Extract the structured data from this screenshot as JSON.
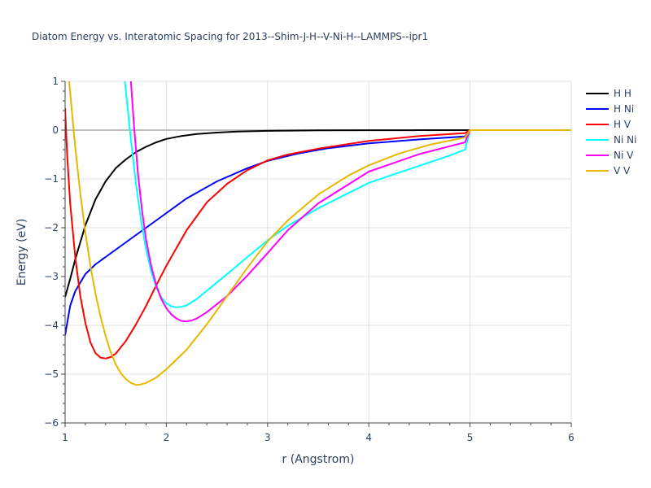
{
  "chart_data": {
    "type": "line",
    "title": "Diatom Energy vs. Interatomic Spacing for 2013--Shim-J-H--V-Ni-H--LAMMPS--ipr1",
    "xlabel": "r (Angstrom)",
    "ylabel": "Energy (eV)",
    "xlim": [
      1,
      6
    ],
    "ylim": [
      -6,
      1
    ],
    "x_ticks": [
      "1",
      "2",
      "3",
      "4",
      "5",
      "6"
    ],
    "y_ticks": [
      "1",
      "0",
      "−1",
      "−2",
      "−3",
      "−4",
      "−5",
      "−6"
    ],
    "grid": true,
    "legend_position": "top-right",
    "series": [
      {
        "name": "H H",
        "color": "#000000",
        "x": [
          1.0,
          1.05,
          1.1,
          1.2,
          1.3,
          1.4,
          1.5,
          1.6,
          1.7,
          1.8,
          1.9,
          2.0,
          2.15,
          2.3,
          2.5,
          2.7,
          3.0,
          3.5,
          4.0,
          4.5,
          5.0,
          6.0
        ],
        "y": [
          -3.42,
          -3.05,
          -2.65,
          -1.95,
          -1.42,
          -1.05,
          -0.78,
          -0.6,
          -0.45,
          -0.34,
          -0.25,
          -0.18,
          -0.12,
          -0.08,
          -0.05,
          -0.03,
          -0.015,
          -0.005,
          -0.002,
          -0.001,
          0.0,
          0.0
        ]
      },
      {
        "name": "H Ni",
        "color": "#0000ff",
        "x": [
          1.0,
          1.05,
          1.1,
          1.2,
          1.3,
          1.4,
          1.5,
          1.6,
          1.7,
          1.8,
          1.9,
          2.0,
          2.2,
          2.5,
          2.8,
          3.0,
          3.3,
          3.6,
          4.0,
          4.5,
          4.95,
          5.0,
          6.0
        ],
        "y": [
          -4.2,
          -3.6,
          -3.3,
          -2.95,
          -2.75,
          -2.6,
          -2.45,
          -2.3,
          -2.15,
          -2.0,
          -1.85,
          -1.7,
          -1.4,
          -1.05,
          -0.78,
          -0.63,
          -0.48,
          -0.37,
          -0.27,
          -0.19,
          -0.13,
          0.0,
          0.0
        ]
      },
      {
        "name": "H V",
        "color": "#ff0000",
        "x": [
          1.0,
          1.02,
          1.05,
          1.1,
          1.15,
          1.2,
          1.25,
          1.3,
          1.35,
          1.4,
          1.45,
          1.5,
          1.6,
          1.7,
          1.8,
          1.9,
          2.0,
          2.2,
          2.4,
          2.6,
          2.8,
          3.0,
          3.2,
          3.5,
          4.0,
          4.5,
          4.95,
          5.0,
          6.0
        ],
        "y": [
          0.45,
          -0.5,
          -1.5,
          -2.6,
          -3.4,
          -3.95,
          -4.35,
          -4.57,
          -4.66,
          -4.68,
          -4.65,
          -4.58,
          -4.32,
          -3.98,
          -3.6,
          -3.18,
          -2.78,
          -2.05,
          -1.48,
          -1.1,
          -0.82,
          -0.62,
          -0.5,
          -0.38,
          -0.22,
          -0.12,
          -0.06,
          0.0,
          0.0
        ]
      },
      {
        "name": "Ni Ni",
        "color": "#00ffff",
        "x": [
          1.59,
          1.62,
          1.65,
          1.7,
          1.75,
          1.8,
          1.85,
          1.9,
          1.95,
          2.0,
          2.05,
          2.1,
          2.15,
          2.2,
          2.3,
          2.4,
          2.6,
          2.8,
          3.0,
          3.2,
          3.5,
          4.0,
          4.5,
          4.8,
          4.95,
          5.0,
          6.0
        ],
        "y": [
          1.0,
          0.4,
          -0.2,
          -1.1,
          -1.85,
          -2.45,
          -2.9,
          -3.22,
          -3.43,
          -3.55,
          -3.61,
          -3.63,
          -3.62,
          -3.59,
          -3.46,
          -3.29,
          -2.95,
          -2.6,
          -2.26,
          -1.96,
          -1.6,
          -1.08,
          -0.73,
          -0.52,
          -0.4,
          0.0,
          0.0
        ]
      },
      {
        "name": "Ni V",
        "color": "#ff00ff",
        "x": [
          1.65,
          1.68,
          1.72,
          1.76,
          1.8,
          1.85,
          1.9,
          1.95,
          2.0,
          2.05,
          2.1,
          2.15,
          2.2,
          2.25,
          2.3,
          2.4,
          2.6,
          2.8,
          3.0,
          3.2,
          3.5,
          4.0,
          4.5,
          4.8,
          4.95,
          5.0,
          6.0
        ],
        "y": [
          1.0,
          0.1,
          -0.9,
          -1.65,
          -2.25,
          -2.78,
          -3.18,
          -3.46,
          -3.65,
          -3.78,
          -3.86,
          -3.91,
          -3.92,
          -3.9,
          -3.86,
          -3.73,
          -3.4,
          -2.98,
          -2.52,
          -2.05,
          -1.5,
          -0.85,
          -0.49,
          -0.33,
          -0.25,
          0.0,
          0.0
        ]
      },
      {
        "name": "V V",
        "color": "#e6b800",
        "x": [
          1.04,
          1.06,
          1.1,
          1.15,
          1.2,
          1.25,
          1.3,
          1.35,
          1.4,
          1.45,
          1.5,
          1.55,
          1.6,
          1.65,
          1.7,
          1.75,
          1.8,
          1.9,
          2.0,
          2.2,
          2.4,
          2.6,
          2.8,
          3.0,
          3.2,
          3.5,
          3.8,
          4.0,
          4.3,
          4.6,
          4.95,
          5.0,
          6.0
        ],
        "y": [
          1.0,
          0.55,
          -0.35,
          -1.3,
          -2.1,
          -2.78,
          -3.35,
          -3.82,
          -4.22,
          -4.55,
          -4.8,
          -4.98,
          -5.1,
          -5.18,
          -5.22,
          -5.21,
          -5.18,
          -5.07,
          -4.9,
          -4.5,
          -3.98,
          -3.4,
          -2.82,
          -2.28,
          -1.85,
          -1.32,
          -0.93,
          -0.72,
          -0.48,
          -0.3,
          -0.15,
          0.0,
          0.0
        ]
      }
    ]
  }
}
